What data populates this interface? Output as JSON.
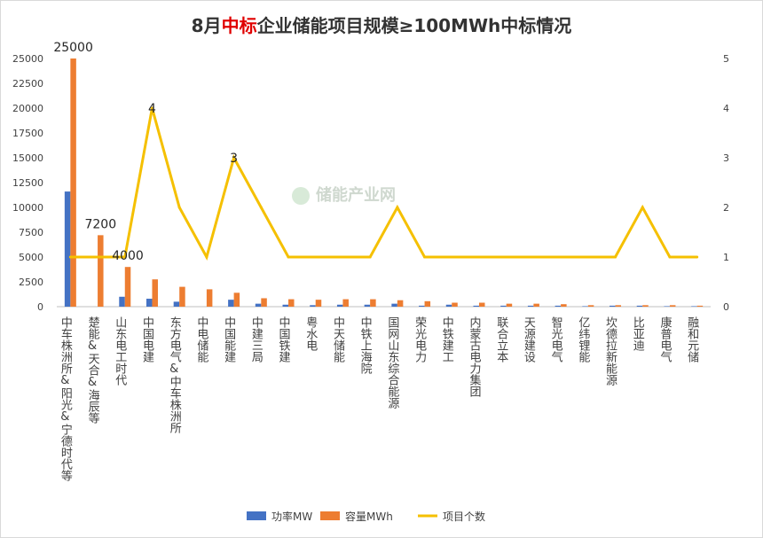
{
  "chart_data": {
    "type": "bar",
    "title_parts": [
      "8月",
      "中标",
      "企业储能项目规模≥100MWh中标情况"
    ],
    "title_accent_color": "#e00000",
    "watermark": "储能产业网",
    "categories": [
      "中车株洲所&阳光&宁德时代等",
      "楚能&天合&海辰等",
      "山东电工时代",
      "中国电建",
      "东方电气&中车株洲所",
      "中电储能",
      "中国能建",
      "中建三局",
      "中国铁建",
      "粤水电",
      "中天储能",
      "中铁上海院",
      "国网山东综合能源",
      "荣光电力",
      "中铁建工",
      "内蒙古电力集团",
      "联合立本",
      "天源建设",
      "智光电气",
      "亿纬锂能",
      "坎德拉新能源",
      "比亚迪",
      "康普电气",
      "融和元储"
    ],
    "series": [
      {
        "name": "功率MW",
        "axis": "left",
        "color": "#4472c4",
        "values": [
          11600,
          0,
          1000,
          800,
          500,
          0,
          700,
          300,
          200,
          150,
          200,
          200,
          300,
          100,
          200,
          100,
          100,
          100,
          100,
          50,
          100,
          100,
          50,
          50
        ]
      },
      {
        "name": "容量MWh",
        "axis": "left",
        "color": "#ed7d31",
        "values": [
          25000,
          7200,
          4000,
          2750,
          2000,
          1750,
          1400,
          850,
          750,
          700,
          750,
          750,
          650,
          550,
          400,
          400,
          300,
          300,
          250,
          150,
          150,
          150,
          150,
          100
        ]
      },
      {
        "name": "项目个数",
        "axis": "right",
        "type": "line",
        "color": "#f5c000",
        "values": [
          1,
          1,
          1,
          4,
          2,
          1,
          3,
          2,
          1,
          1,
          1,
          1,
          2,
          1,
          1,
          1,
          1,
          1,
          1,
          1,
          1,
          2,
          1,
          1
        ]
      }
    ],
    "y_left": {
      "min": 0,
      "max": 25000,
      "step": 2500,
      "ticks": [
        "0",
        "2500",
        "5000",
        "7500",
        "10000",
        "12500",
        "15000",
        "17500",
        "20000",
        "22500",
        "25000"
      ]
    },
    "y_right": {
      "min": 0,
      "max": 5,
      "step": 1,
      "ticks": [
        "0",
        "1",
        "2",
        "3",
        "4",
        "5"
      ]
    },
    "data_labels": [
      {
        "series": 1,
        "index": 0,
        "text": "25000"
      },
      {
        "series": 1,
        "index": 1,
        "text": "7200"
      },
      {
        "series": 1,
        "index": 2,
        "text": "4000"
      },
      {
        "series": 2,
        "index": 3,
        "text": "4"
      },
      {
        "series": 2,
        "index": 6,
        "text": "3"
      }
    ],
    "legend_position": "bottom",
    "grid": false
  }
}
